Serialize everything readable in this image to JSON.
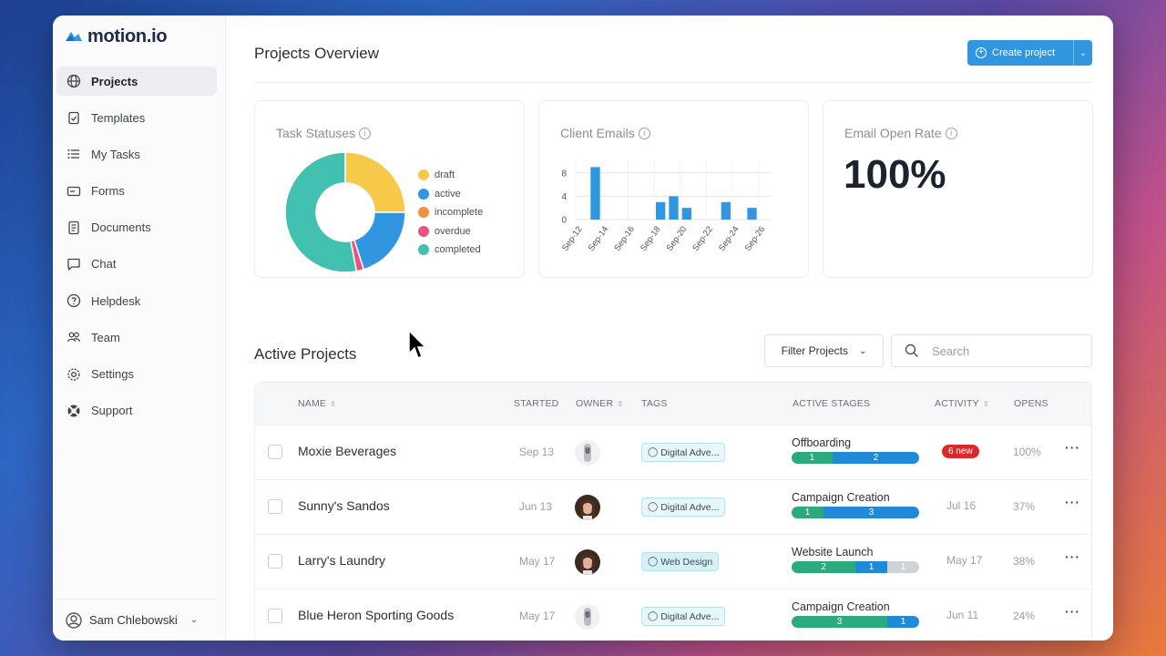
{
  "app": {
    "logo_text": "motion.io"
  },
  "sidebar": {
    "items": [
      {
        "label": "Projects",
        "icon": "globe-icon",
        "active": true
      },
      {
        "label": "Templates",
        "icon": "clipboard-icon"
      },
      {
        "label": "My Tasks",
        "icon": "list-icon"
      },
      {
        "label": "Forms",
        "icon": "form-icon"
      },
      {
        "label": "Documents",
        "icon": "document-icon"
      },
      {
        "label": "Chat",
        "icon": "chat-icon"
      },
      {
        "label": "Helpdesk",
        "icon": "help-icon"
      },
      {
        "label": "Team",
        "icon": "team-icon"
      },
      {
        "label": "Settings",
        "icon": "gear-icon"
      },
      {
        "label": "Support",
        "icon": "lifebuoy-icon"
      }
    ],
    "user_name": "Sam Chlebowski"
  },
  "header": {
    "title": "Projects Overview",
    "create_label": "Create project"
  },
  "cards": {
    "task_statuses": {
      "title": "Task Statuses",
      "legend": [
        {
          "label": "draft",
          "color": "#f7c948"
        },
        {
          "label": "active",
          "color": "#2f96df"
        },
        {
          "label": "incomplete",
          "color": "#f2913c"
        },
        {
          "label": "overdue",
          "color": "#e8547a"
        },
        {
          "label": "completed",
          "color": "#43c1b0"
        }
      ]
    },
    "client_emails": {
      "title": "Client Emails"
    },
    "email_open_rate": {
      "title": "Email Open Rate",
      "value": "100%"
    }
  },
  "chart_data": [
    {
      "type": "pie",
      "title": "Task Statuses",
      "donut": true,
      "categories": [
        "draft",
        "active",
        "incomplete",
        "overdue",
        "completed"
      ],
      "values": [
        25,
        20,
        0,
        2,
        53
      ],
      "colors": [
        "#f7c948",
        "#2f96df",
        "#f2913c",
        "#e8547a",
        "#43c1b0"
      ]
    },
    {
      "type": "bar",
      "title": "Client Emails",
      "categories": [
        "Sep-12",
        "Sep-13",
        "Sep-14",
        "Sep-15",
        "Sep-16",
        "Sep-17",
        "Sep-18",
        "Sep-19",
        "Sep-20",
        "Sep-21",
        "Sep-22",
        "Sep-23",
        "Sep-24",
        "Sep-25",
        "Sep-26"
      ],
      "values": [
        0,
        9,
        0,
        0,
        0,
        0,
        3,
        4,
        2,
        0,
        0,
        3,
        0,
        2,
        0
      ],
      "tick_labels": [
        "Sep-12",
        "Sep-14",
        "Sep-16",
        "Sep-18",
        "Sep-20",
        "Sep-22",
        "Sep-24",
        "Sep-26"
      ],
      "ylim": [
        0,
        10
      ],
      "yticks": [
        0,
        4,
        8
      ],
      "color": "#2f96df",
      "grid": true
    }
  ],
  "projects": {
    "title": "Active Projects",
    "filter_label": "Filter Projects",
    "search_placeholder": "Search",
    "columns": {
      "name": "NAME",
      "started": "STARTED",
      "owner": "OWNER",
      "tags": "TAGS",
      "stages": "ACTIVE STAGES",
      "activity": "ACTIVITY",
      "opens": "OPENS"
    },
    "rows": [
      {
        "name": "Moxie Beverages",
        "started": "Sep 13",
        "tag": "Digital Adve...",
        "tag_color": "#e8f7fa",
        "stage": "Offboarding",
        "segments": [
          {
            "n": "1",
            "c": "green",
            "w": 32
          },
          {
            "n": "2",
            "c": "blue",
            "w": 68
          }
        ],
        "activity": "6 new",
        "activity_is_badge": true,
        "opens": "100%"
      },
      {
        "name": "Sunny's Sandos",
        "started": "Jun 13",
        "tag": "Digital Adve...",
        "tag_color": "#e8f7fa",
        "stage": "Campaign Creation",
        "segments": [
          {
            "n": "1",
            "c": "green",
            "w": 25
          },
          {
            "n": "3",
            "c": "blue",
            "w": 75
          }
        ],
        "activity": "Jul 16",
        "activity_is_badge": false,
        "opens": "37%"
      },
      {
        "name": "Larry's Laundry",
        "started": "May 17",
        "tag": "Web Design",
        "tag_color": "#d6f0f7",
        "stage": "Website Launch",
        "segments": [
          {
            "n": "2",
            "c": "green",
            "w": 50
          },
          {
            "n": "1",
            "c": "blue",
            "w": 25
          },
          {
            "n": "1",
            "c": "gray",
            "w": 25
          }
        ],
        "activity": "May 17",
        "activity_is_badge": false,
        "opens": "38%"
      },
      {
        "name": "Blue Heron Sporting Goods",
        "started": "May 17",
        "tag": "Digital Adve...",
        "tag_color": "#e8f7fa",
        "stage": "Campaign Creation",
        "segments": [
          {
            "n": "3",
            "c": "green",
            "w": 75
          },
          {
            "n": "1",
            "c": "blue",
            "w": 25
          }
        ],
        "activity": "Jun 11",
        "activity_is_badge": false,
        "opens": "24%"
      }
    ]
  }
}
